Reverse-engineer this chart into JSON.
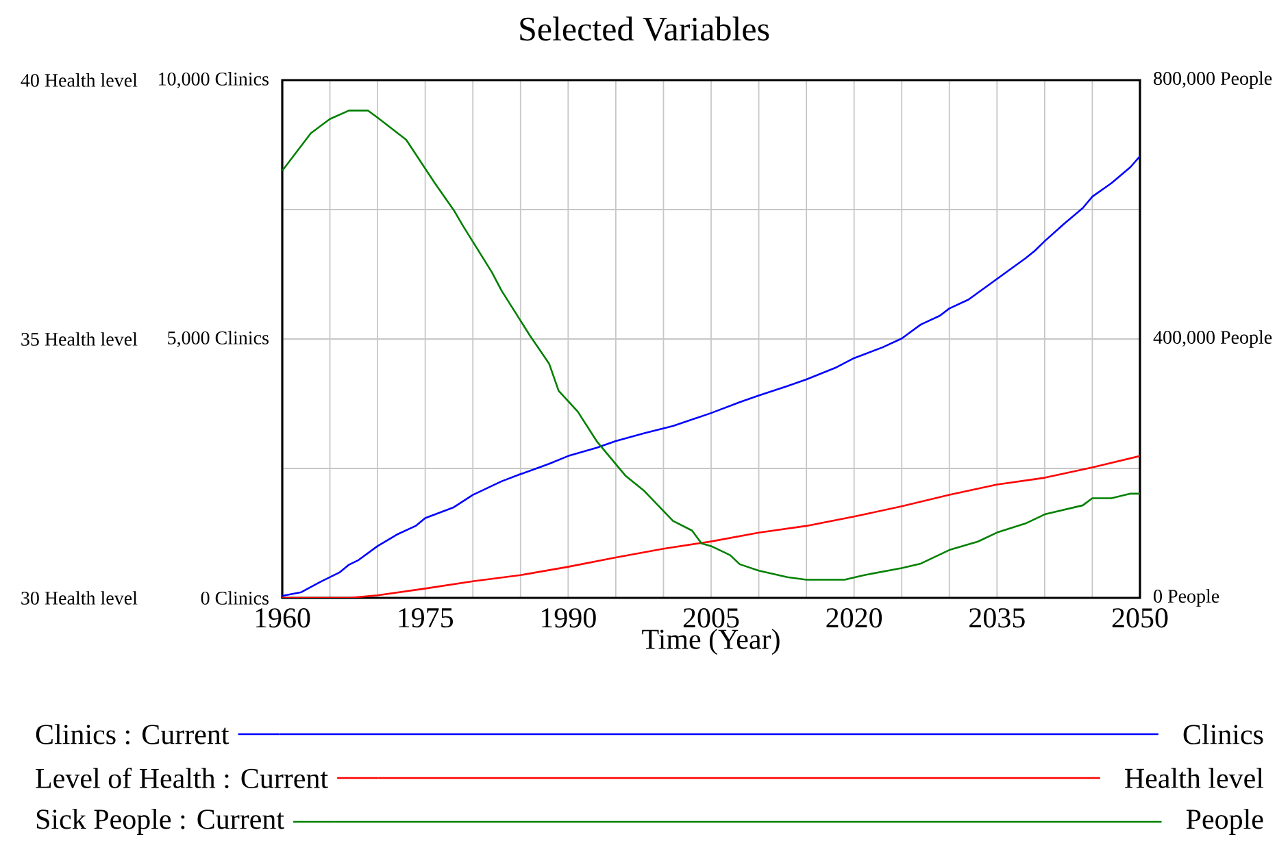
{
  "chart_data": {
    "type": "line",
    "title": "Selected Variables",
    "xlabel": "Time (Year)",
    "annotations": [
      "Clinics",
      "Health level",
      "People"
    ],
    "xlim": [
      1960,
      2050
    ],
    "xticks": [
      1960,
      {
        "value": 1965,
        "label": null
      },
      {
        "value": 1970,
        "label": null
      },
      1975,
      {
        "value": 1980,
        "label": null
      },
      {
        "value": 1985,
        "label": null
      },
      1990,
      {
        "value": 1995,
        "label": null
      },
      {
        "value": 2000,
        "label": null
      },
      2005,
      {
        "value": 2010,
        "label": null
      },
      {
        "value": 2015,
        "label": null
      },
      2020,
      {
        "value": 2025,
        "label": null
      },
      {
        "value": 2030,
        "label": null
      },
      2035,
      {
        "value": 2040,
        "label": null
      },
      {
        "value": 2045,
        "label": null
      },
      2050
    ],
    "ylim": [
      0,
      10000
    ],
    "yticks": [
      {
        "value": 0,
        "label": "0 Clinics"
      },
      {
        "value": 2500,
        "label": null
      },
      {
        "value": 5000,
        "label": "5,000 Clinics"
      },
      {
        "value": 7500,
        "label": null
      },
      {
        "value": 10000,
        "label": "10,000 Clinics"
      }
    ],
    "y2lim": [
      30,
      40
    ],
    "y2ticks": [
      {
        "value": 30,
        "label": "30 Health level"
      },
      {
        "value": 35,
        "label": "35 Health level"
      },
      {
        "value": 40,
        "label": "40 Health level"
      }
    ],
    "y3lim": [
      0,
      800000
    ],
    "y3ticks": [
      {
        "value": 0,
        "label": "0 People"
      },
      {
        "value": 400000,
        "label": "400,000 People"
      },
      {
        "value": 800000,
        "label": "800,000 People"
      }
    ],
    "grid": true,
    "legend": "bottom",
    "series": [
      {
        "name": "Clinics : Current",
        "color": "#0000ff",
        "axis": "y",
        "x": [
          1960,
          1962,
          1964,
          1966,
          1967,
          1968,
          1970,
          1972,
          1974,
          1975,
          1978,
          1980,
          1983,
          1985,
          1988,
          1990,
          1993,
          1995,
          1998,
          2001,
          2005,
          2008,
          2010,
          2013,
          2015,
          2018,
          2020,
          2023,
          2025,
          2027,
          2029,
          2030,
          2032,
          2035,
          2038,
          2039,
          2040,
          2042,
          2044,
          2045,
          2047,
          2049,
          2050
        ],
        "values": [
          40,
          110,
          310,
          490,
          640,
          730,
          1000,
          1220,
          1390,
          1540,
          1750,
          1990,
          2250,
          2390,
          2590,
          2740,
          2900,
          3030,
          3180,
          3320,
          3570,
          3780,
          3910,
          4090,
          4220,
          4440,
          4630,
          4840,
          5010,
          5280,
          5450,
          5590,
          5760,
          6160,
          6560,
          6710,
          6890,
          7220,
          7530,
          7750,
          8010,
          8320,
          8530
        ]
      },
      {
        "name": "Level of Health : Current",
        "color": "#ff0000",
        "axis": "y2",
        "x": [
          1960,
          1967,
          1970,
          1975,
          1980,
          1985,
          1990,
          1995,
          2000,
          2005,
          2010,
          2015,
          2020,
          2025,
          2030,
          2035,
          2040,
          2045,
          2050
        ],
        "values": [
          30,
          30,
          30.05,
          30.18,
          30.32,
          30.44,
          30.6,
          30.78,
          30.95,
          31.09,
          31.26,
          31.39,
          31.57,
          31.77,
          31.99,
          32.19,
          32.32,
          32.52,
          32.74
        ]
      },
      {
        "name": "Sick People : Current",
        "color": "#008000",
        "axis": "y3",
        "x": [
          1960,
          1963,
          1965,
          1967,
          1969,
          1970,
          1973,
          1976,
          1978,
          1979,
          1982,
          1983,
          1986,
          1988,
          1989,
          1991,
          1993,
          1996,
          1998,
          2001,
          2003,
          2004,
          2005,
          2007,
          2008,
          2010,
          2013,
          2015,
          2019,
          2021,
          2025,
          2027,
          2030,
          2033,
          2035,
          2038,
          2040,
          2044,
          2045,
          2047,
          2049,
          2050
        ],
        "values": [
          660000,
          718000,
          740000,
          753000,
          753000,
          742000,
          708000,
          641000,
          599000,
          574000,
          503000,
          475000,
          405000,
          362000,
          320000,
          288000,
          242000,
          189000,
          165000,
          119000,
          104000,
          84000,
          80000,
          66000,
          52000,
          42000,
          32000,
          28000,
          28000,
          35000,
          46000,
          53000,
          74000,
          87000,
          101000,
          115000,
          129000,
          143000,
          154000,
          154000,
          161000,
          161000
        ]
      }
    ]
  }
}
